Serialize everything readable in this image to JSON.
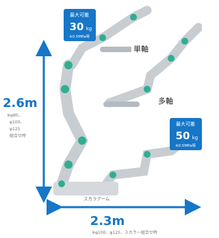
{
  "badges": [
    {
      "caption": "最大可搬",
      "number": "30",
      "unit": "kg",
      "note": "※0.5MPa時"
    },
    {
      "caption": "最大可搬",
      "number": "50",
      "unit": "kg",
      "note": "※0.5MPa時"
    }
  ],
  "labels": {
    "single": "単軸",
    "multi": "多軸",
    "scara": "スカラアーム"
  },
  "height": {
    "value": "2.6m",
    "note_lines": [
      "※φ80、",
      "φ100、",
      "φ125",
      "組合せ時"
    ]
  },
  "width": {
    "value": "2.3m",
    "note": "※φ100、φ125、スカラー組合せ時"
  }
}
